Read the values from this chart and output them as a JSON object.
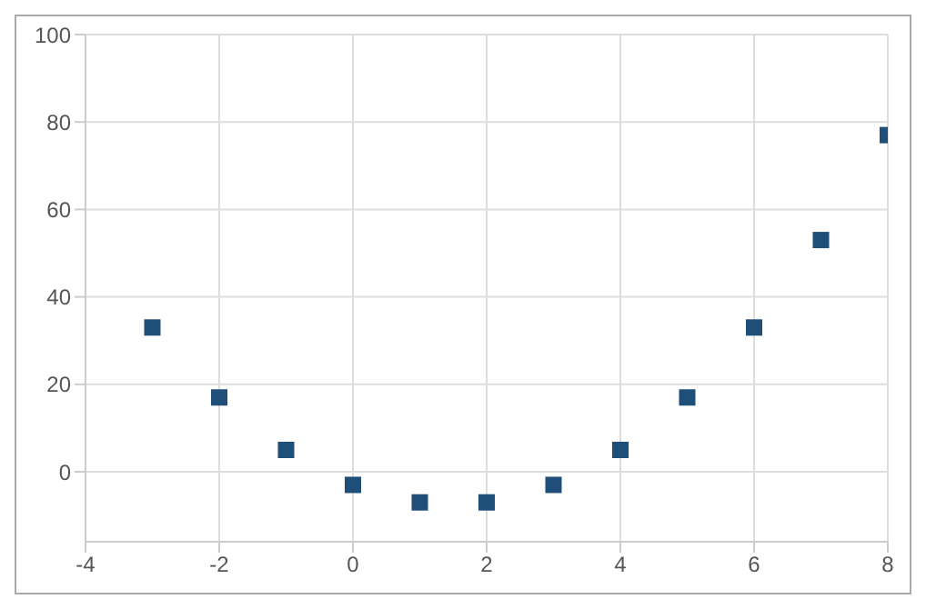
{
  "chart_data": {
    "type": "scatter",
    "x": [
      -3,
      -2,
      -1,
      0,
      1,
      2,
      3,
      4,
      5,
      6,
      7,
      8
    ],
    "series": [
      {
        "color": "#1f4e79",
        "values": [
          33,
          17,
          5,
          -3,
          -7,
          -7,
          -3,
          5,
          17,
          33,
          53,
          77
        ]
      }
    ],
    "xlim": [
      -4,
      8
    ],
    "xticks": [
      -4,
      -2,
      0,
      2,
      4,
      6,
      8
    ],
    "ylim": [
      -16,
      100
    ],
    "yticks": [
      0,
      20,
      40,
      60,
      80,
      100
    ],
    "grid": true,
    "marker": "square",
    "legend": false
  }
}
